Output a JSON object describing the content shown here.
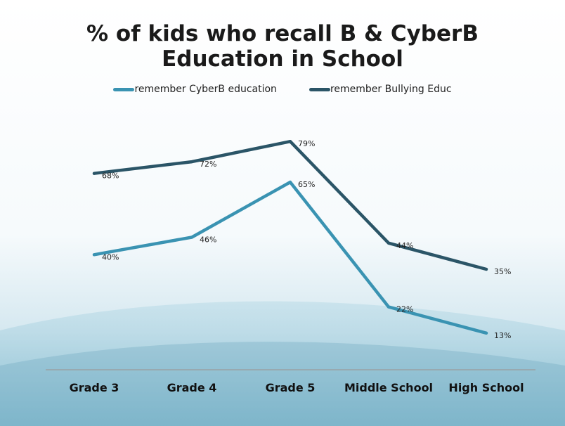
{
  "chart_data": {
    "type": "line",
    "title_lines": [
      "% of kids who recall B & CyberB",
      "Education in School"
    ],
    "categories": [
      "Grade 3",
      "Grade 4",
      "Grade 5",
      "Middle School",
      "High School"
    ],
    "ylim": [
      0,
      100
    ],
    "grid": false,
    "legend_position": "top",
    "series": [
      {
        "name": "remember CyberB education",
        "color": "#3a93b2",
        "values": [
          40,
          46,
          65,
          22,
          13
        ],
        "labels": [
          "40%",
          "46%",
          "65%",
          "22%",
          "13%"
        ]
      },
      {
        "name": "remember Bullying Educ",
        "color": "#2b5567",
        "values": [
          68,
          72,
          79,
          44,
          35
        ],
        "labels": [
          "68%",
          "72%",
          "79%",
          "44%",
          "35%"
        ]
      }
    ]
  },
  "colors": {
    "background_top": "#ffffff",
    "background_bottom": "#8ec3d6",
    "axis_line": "#9a9a9a"
  }
}
